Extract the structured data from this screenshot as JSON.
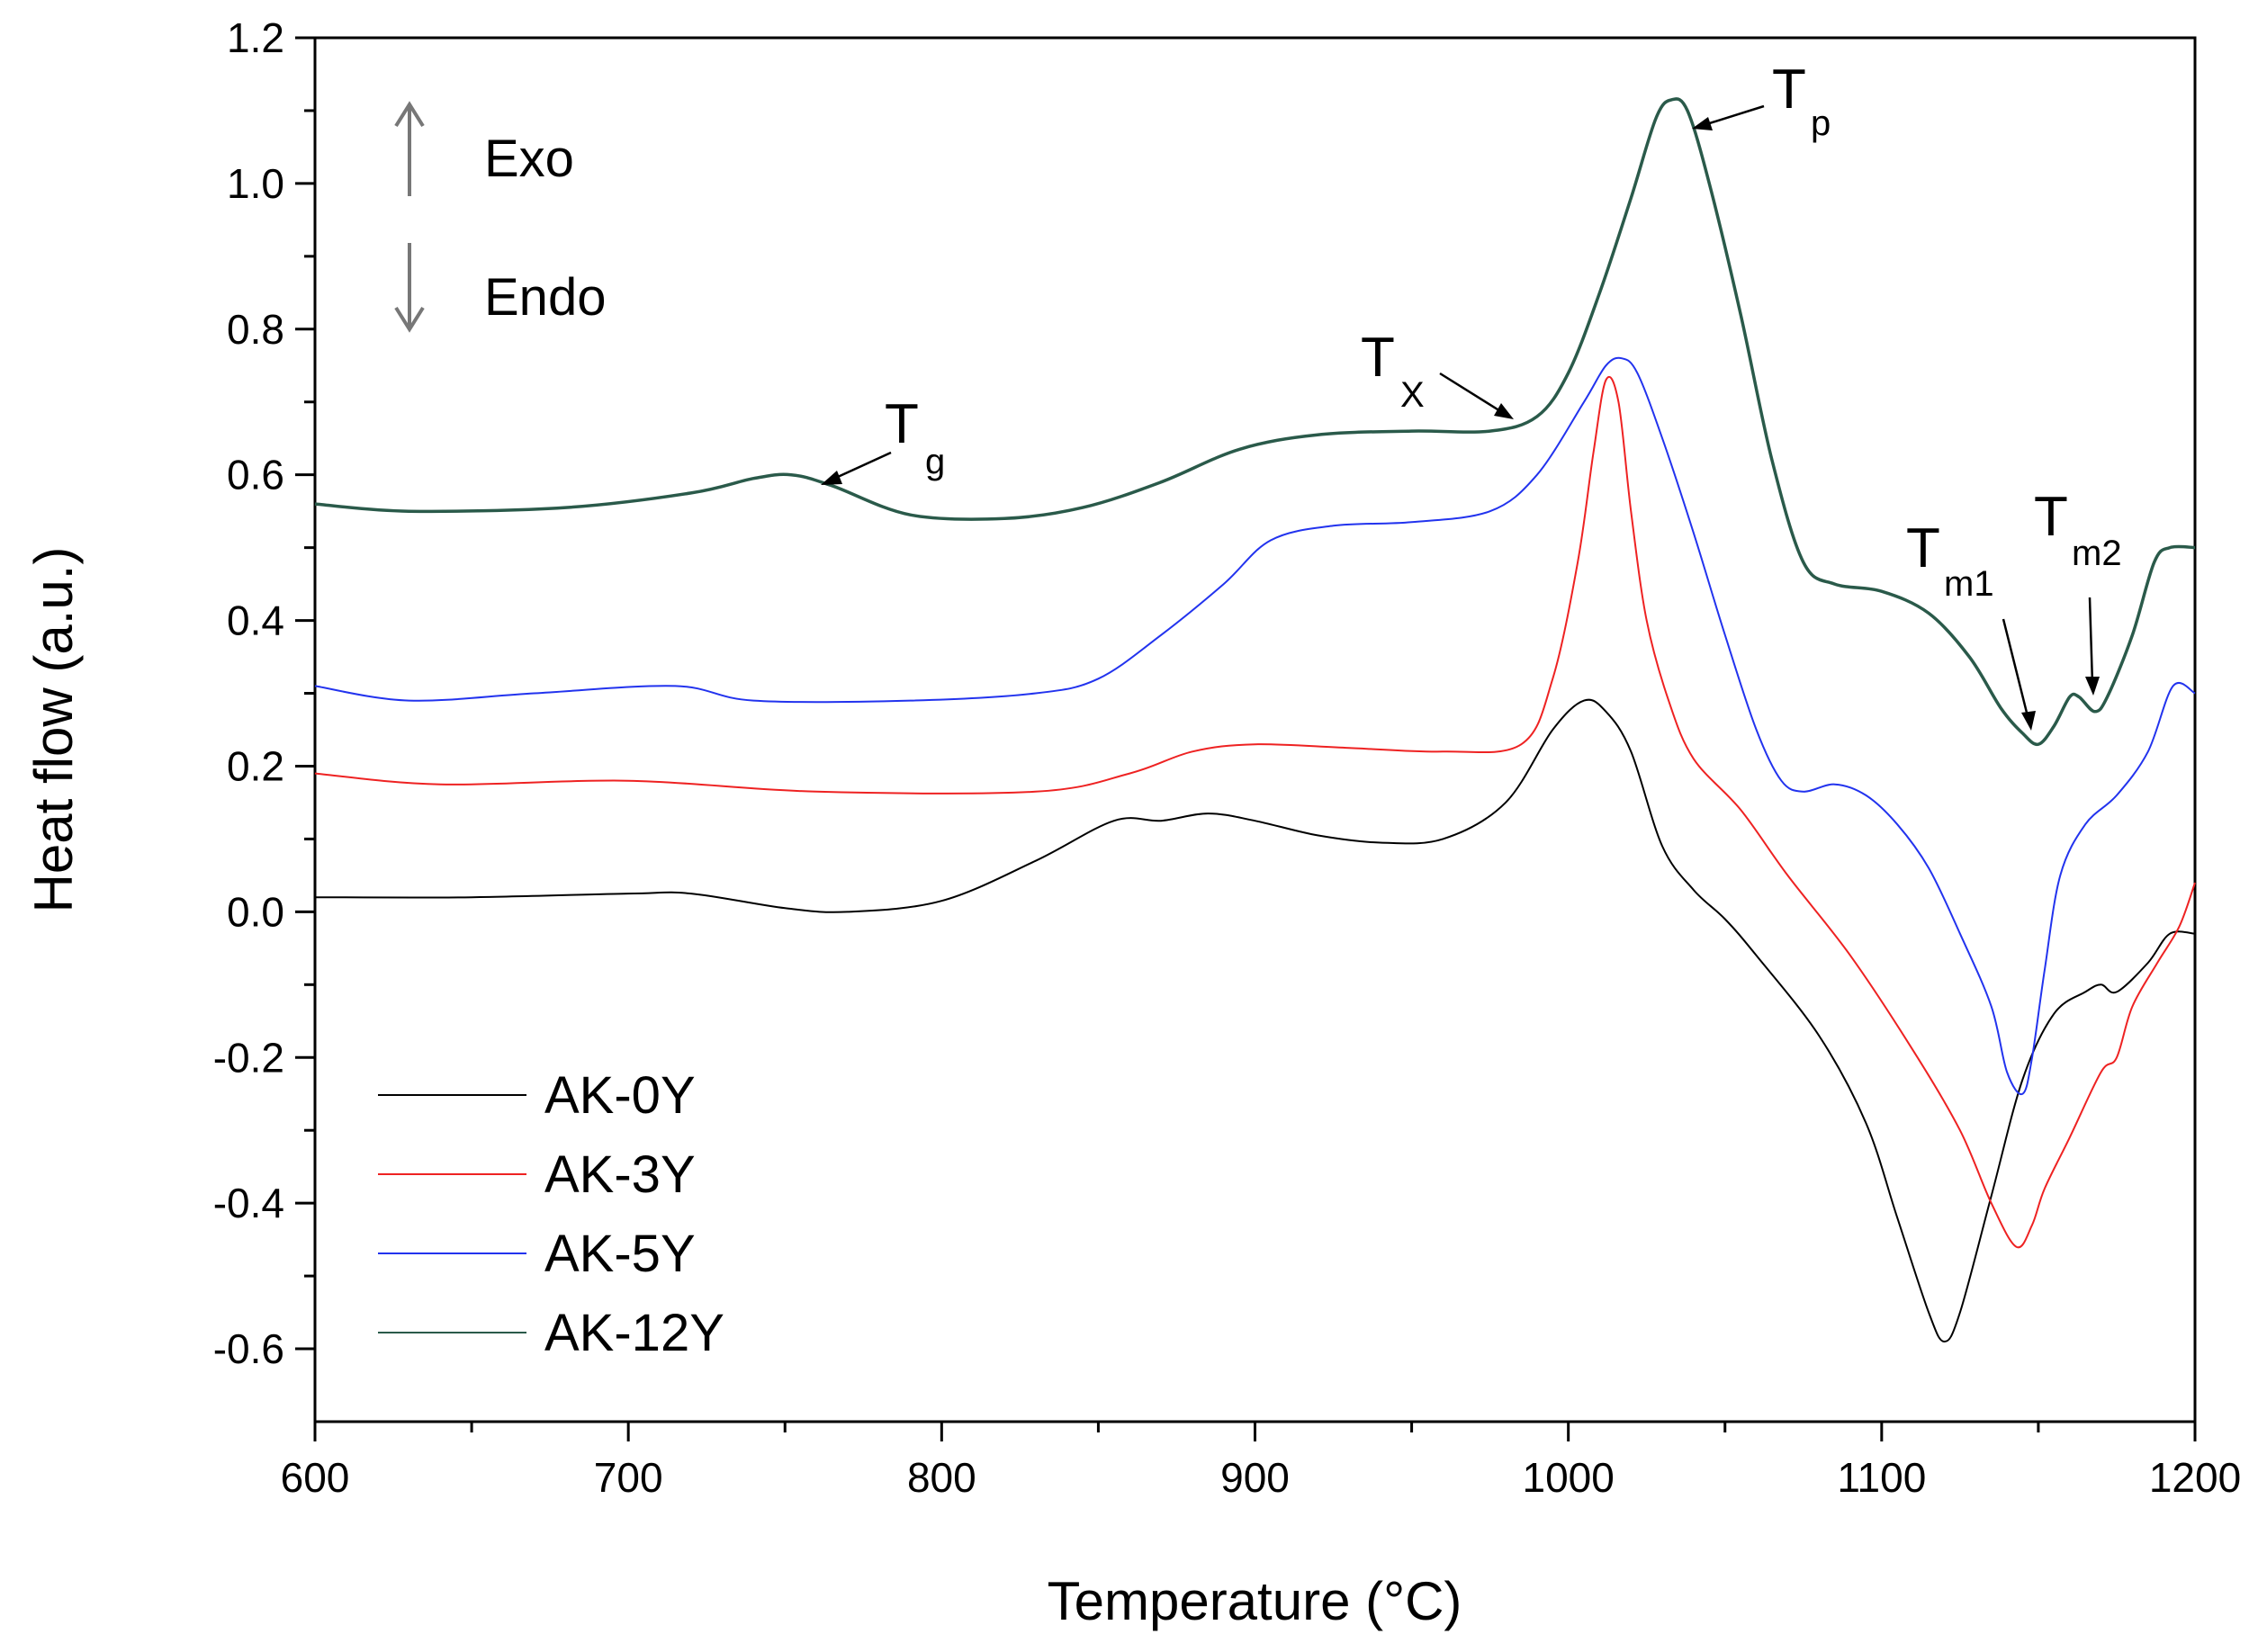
{
  "chart_data": {
    "type": "line",
    "xlabel": "Temperature (°C)",
    "ylabel": "Heat flow (a.u.)",
    "xlim": [
      600,
      1200
    ],
    "ylim": [
      -0.7,
      1.2
    ],
    "xticks": [
      600,
      700,
      800,
      900,
      1000,
      1100,
      1200
    ],
    "yticks": [
      -0.6,
      -0.4,
      -0.2,
      0.0,
      0.2,
      0.4,
      0.6,
      0.8,
      1.0,
      1.2
    ],
    "xtick_labels": [
      "600",
      "700",
      "800",
      "900",
      "1000",
      "1100",
      "1200"
    ],
    "ytick_labels": [
      "-0.6",
      "-0.4",
      "-0.2",
      "0.0",
      "0.2",
      "0.4",
      "0.6",
      "0.8",
      "1.0",
      "1.2"
    ],
    "legend_position": "bottom-left",
    "series": [
      {
        "name": "AK-0Y",
        "color": "#000000",
        "points": [
          [
            600,
            0.02
          ],
          [
            650,
            0.02
          ],
          [
            700,
            0.025
          ],
          [
            720,
            0.025
          ],
          [
            750,
            0.005
          ],
          [
            770,
            0.0
          ],
          [
            800,
            0.015
          ],
          [
            830,
            0.07
          ],
          [
            855,
            0.125
          ],
          [
            870,
            0.125
          ],
          [
            885,
            0.135
          ],
          [
            900,
            0.125
          ],
          [
            920,
            0.105
          ],
          [
            940,
            0.095
          ],
          [
            960,
            0.1
          ],
          [
            980,
            0.15
          ],
          [
            995,
            0.25
          ],
          [
            1005,
            0.29
          ],
          [
            1012,
            0.275
          ],
          [
            1020,
            0.22
          ],
          [
            1030,
            0.09
          ],
          [
            1040,
            0.03
          ],
          [
            1050,
            -0.01
          ],
          [
            1060,
            -0.06
          ],
          [
            1080,
            -0.17
          ],
          [
            1095,
            -0.29
          ],
          [
            1105,
            -0.42
          ],
          [
            1115,
            -0.55
          ],
          [
            1120,
            -0.59
          ],
          [
            1125,
            -0.55
          ],
          [
            1135,
            -0.39
          ],
          [
            1145,
            -0.23
          ],
          [
            1155,
            -0.14
          ],
          [
            1165,
            -0.11
          ],
          [
            1170,
            -0.1
          ],
          [
            1175,
            -0.11
          ],
          [
            1185,
            -0.07
          ],
          [
            1192,
            -0.03
          ],
          [
            1200,
            -0.03
          ]
        ]
      },
      {
        "name": "AK-3Y",
        "color": "#ee2222",
        "points": [
          [
            600,
            0.19
          ],
          [
            640,
            0.175
          ],
          [
            700,
            0.18
          ],
          [
            760,
            0.165
          ],
          [
            830,
            0.165
          ],
          [
            860,
            0.19
          ],
          [
            880,
            0.22
          ],
          [
            900,
            0.23
          ],
          [
            930,
            0.225
          ],
          [
            960,
            0.22
          ],
          [
            985,
            0.23
          ],
          [
            995,
            0.32
          ],
          [
            1003,
            0.48
          ],
          [
            1008,
            0.63
          ],
          [
            1012,
            0.73
          ],
          [
            1016,
            0.7
          ],
          [
            1020,
            0.55
          ],
          [
            1025,
            0.4
          ],
          [
            1032,
            0.29
          ],
          [
            1040,
            0.21
          ],
          [
            1055,
            0.14
          ],
          [
            1070,
            0.05
          ],
          [
            1090,
            -0.06
          ],
          [
            1110,
            -0.19
          ],
          [
            1125,
            -0.3
          ],
          [
            1135,
            -0.4
          ],
          [
            1143,
            -0.46
          ],
          [
            1148,
            -0.43
          ],
          [
            1152,
            -0.38
          ],
          [
            1160,
            -0.31
          ],
          [
            1170,
            -0.22
          ],
          [
            1175,
            -0.2
          ],
          [
            1180,
            -0.13
          ],
          [
            1188,
            -0.07
          ],
          [
            1195,
            -0.02
          ],
          [
            1200,
            0.04
          ]
        ]
      },
      {
        "name": "AK-5Y",
        "color": "#2233ee",
        "points": [
          [
            600,
            0.31
          ],
          [
            630,
            0.29
          ],
          [
            670,
            0.3
          ],
          [
            715,
            0.31
          ],
          [
            740,
            0.29
          ],
          [
            790,
            0.29
          ],
          [
            830,
            0.3
          ],
          [
            850,
            0.32
          ],
          [
            870,
            0.38
          ],
          [
            890,
            0.45
          ],
          [
            905,
            0.51
          ],
          [
            925,
            0.53
          ],
          [
            950,
            0.535
          ],
          [
            975,
            0.55
          ],
          [
            990,
            0.6
          ],
          [
            1005,
            0.7
          ],
          [
            1012,
            0.75
          ],
          [
            1017,
            0.76
          ],
          [
            1022,
            0.74
          ],
          [
            1030,
            0.65
          ],
          [
            1040,
            0.52
          ],
          [
            1050,
            0.38
          ],
          [
            1060,
            0.25
          ],
          [
            1068,
            0.18
          ],
          [
            1075,
            0.165
          ],
          [
            1085,
            0.175
          ],
          [
            1095,
            0.16
          ],
          [
            1105,
            0.12
          ],
          [
            1115,
            0.06
          ],
          [
            1125,
            -0.03
          ],
          [
            1135,
            -0.13
          ],
          [
            1140,
            -0.22
          ],
          [
            1145,
            -0.25
          ],
          [
            1148,
            -0.2
          ],
          [
            1152,
            -0.08
          ],
          [
            1157,
            0.05
          ],
          [
            1165,
            0.12
          ],
          [
            1175,
            0.16
          ],
          [
            1185,
            0.22
          ],
          [
            1193,
            0.31
          ],
          [
            1200,
            0.3
          ]
        ]
      },
      {
        "name": "AK-12Y",
        "color": "#2a5a4a",
        "points": [
          [
            600,
            0.56
          ],
          [
            630,
            0.55
          ],
          [
            680,
            0.555
          ],
          [
            720,
            0.575
          ],
          [
            740,
            0.595
          ],
          [
            752,
            0.6
          ],
          [
            765,
            0.585
          ],
          [
            790,
            0.545
          ],
          [
            820,
            0.54
          ],
          [
            845,
            0.555
          ],
          [
            870,
            0.59
          ],
          [
            895,
            0.635
          ],
          [
            920,
            0.655
          ],
          [
            950,
            0.66
          ],
          [
            975,
            0.66
          ],
          [
            990,
            0.68
          ],
          [
            1000,
            0.74
          ],
          [
            1010,
            0.85
          ],
          [
            1020,
            0.98
          ],
          [
            1028,
            1.09
          ],
          [
            1033,
            1.115
          ],
          [
            1038,
            1.1
          ],
          [
            1045,
            1.0
          ],
          [
            1055,
            0.82
          ],
          [
            1065,
            0.62
          ],
          [
            1075,
            0.48
          ],
          [
            1085,
            0.45
          ],
          [
            1100,
            0.44
          ],
          [
            1115,
            0.41
          ],
          [
            1128,
            0.35
          ],
          [
            1138,
            0.28
          ],
          [
            1145,
            0.245
          ],
          [
            1150,
            0.23
          ],
          [
            1155,
            0.255
          ],
          [
            1160,
            0.295
          ],
          [
            1163,
            0.295
          ],
          [
            1168,
            0.275
          ],
          [
            1172,
            0.295
          ],
          [
            1180,
            0.38
          ],
          [
            1187,
            0.48
          ],
          [
            1192,
            0.5
          ],
          [
            1200,
            0.5
          ]
        ]
      }
    ],
    "annotations": [
      {
        "main": "T",
        "sub": "g"
      },
      {
        "main": "T",
        "sub": "X"
      },
      {
        "main": "T",
        "sub": "p"
      },
      {
        "main": "T",
        "sub": "m1"
      },
      {
        "main": "T",
        "sub": "m2"
      }
    ],
    "direction_labels": {
      "exo": "Exo",
      "endo": "Endo"
    }
  }
}
